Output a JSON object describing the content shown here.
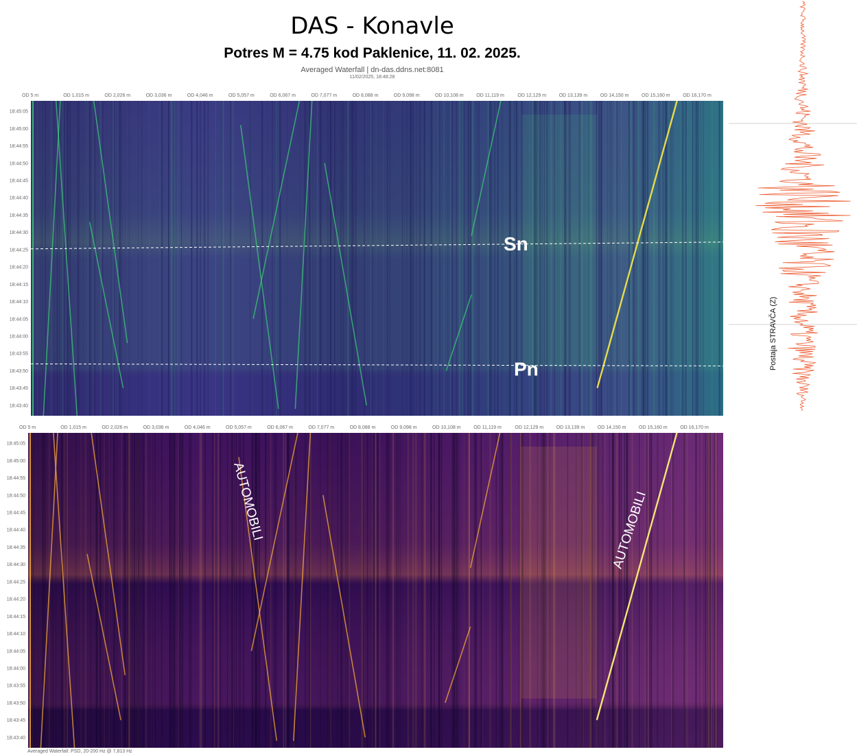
{
  "title": "DAS - Konavle",
  "subtitle": "Potres M = 4.75 kod Paklenice, 11. 02. 2025.",
  "source": "Averaged Waterfall | dn-das.ddns.net:8081",
  "timestamp": "11/02/2025, 18:48:28",
  "footer": "Averaged Waterfall: PSD, 20-200 Hz @ 7,813 Hz",
  "seismo_label": "Postaja STRAVČA (Z)",
  "colors": {
    "top_base": "#3a2f82",
    "top_accent": "#3ecf78",
    "bottom_base": "#4a1670",
    "bottom_accent": "#ffb338",
    "seismogram": "#ec5a2e"
  },
  "chart_data": [
    {
      "type": "heatmap",
      "name": "top-waterfall",
      "colormap": "viridis",
      "x_tick_labels": [
        "OD 5 m",
        "OD 1,015 m",
        "OD 2,026 m",
        "OD 3,036 m",
        "OD 4,046 m",
        "OD 5,057 m",
        "OD 6,067 m",
        "OD 7,077 m",
        "OD 8,088 m",
        "OD 9,098 m",
        "OD 10,108 m",
        "OD 11,119 m",
        "OD 12,129 m",
        "OD 13,139 m",
        "OD 14,150 m",
        "OD 15,160 m",
        "OD 16,170 m"
      ],
      "y_tick_labels": [
        "18:45:05",
        "18:45:00",
        "18:44:55",
        "18:44:50",
        "18:44:45",
        "18:44:40",
        "18:44:35",
        "18:44:30",
        "18:44:25",
        "18:44:20",
        "18:44:15",
        "18:44:10",
        "18:44:05",
        "18:44:00",
        "18:43:55",
        "18:43:50",
        "18:43:45",
        "18:43:40"
      ],
      "annotations": [
        {
          "text": "Sn",
          "time": "18:44:26"
        },
        {
          "text": "Pn",
          "time": "18:43:51"
        }
      ]
    },
    {
      "type": "heatmap",
      "name": "bottom-waterfall",
      "colormap": "inferno",
      "x_tick_labels": [
        "OD 5 m",
        "OD 1,015 m",
        "OD 2,026 m",
        "OD 3,036 m",
        "OD 4,046 m",
        "OD 5,057 m",
        "OD 6,067 m",
        "OD 7,077 m",
        "OD 8,088 m",
        "OD 9,098 m",
        "OD 10,108 m",
        "OD 11,119 m",
        "OD 12,129 m",
        "OD 13,139 m",
        "OD 14,150 m",
        "OD 15,160 m",
        "OD 16,170 m"
      ],
      "y_tick_labels": [
        "18:45:05",
        "18:45:00",
        "18:44:55",
        "18:44:50",
        "18:44:45",
        "18:44:40",
        "18:44:35",
        "18:44:30",
        "18:44:25",
        "18:44:20",
        "18:44:15",
        "18:44:10",
        "18:44:05",
        "18:44:00",
        "18:43:55",
        "18:43:50",
        "18:43:45",
        "18:43:40"
      ],
      "annotations": [
        {
          "text": "AUTOMOBILI"
        },
        {
          "text": "AUTOMOBILI"
        }
      ]
    },
    {
      "type": "line",
      "name": "seismogram",
      "description_label": "Postaja STRAVČA (Z)"
    }
  ]
}
